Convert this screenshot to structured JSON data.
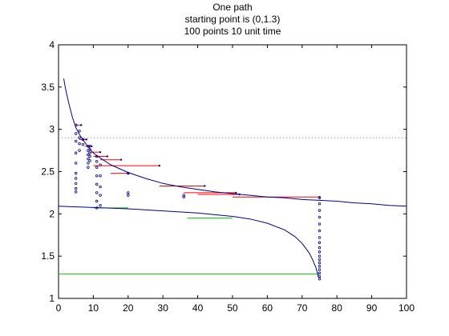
{
  "chart_data": {
    "type": "line",
    "title": [
      "One path",
      "starting point is (0,1.3)",
      "100 points 10 unit time"
    ],
    "xlabel": "",
    "ylabel": "",
    "xlim": [
      0,
      100
    ],
    "ylim": [
      1,
      4
    ],
    "xticks": [
      0,
      10,
      20,
      30,
      40,
      50,
      60,
      70,
      80,
      90,
      100
    ],
    "yticks": [
      1,
      1.5,
      2,
      2.5,
      3,
      3.5,
      4
    ],
    "grid": false,
    "legend": "none",
    "colors": {
      "curve": "#00008b",
      "red": "#ff0000",
      "green": "#00c000",
      "points": "#00008b",
      "dotted": "#808080",
      "axes": "#000000"
    },
    "reference_line": {
      "y": 2.9,
      "style": "dotted"
    },
    "curves": [
      {
        "x": [
          1.5,
          2,
          3,
          4,
          5,
          6,
          8,
          10,
          12,
          15,
          20,
          25,
          30,
          35,
          40,
          45,
          50,
          55,
          60,
          65,
          70,
          75,
          80,
          85,
          90,
          95,
          100
        ],
        "y": [
          3.6,
          3.48,
          3.3,
          3.14,
          3.02,
          2.94,
          2.82,
          2.72,
          2.66,
          2.58,
          2.49,
          2.42,
          2.36,
          2.32,
          2.29,
          2.26,
          2.24,
          2.22,
          2.2,
          2.19,
          2.17,
          2.16,
          2.15,
          2.13,
          2.12,
          2.1,
          2.09
        ]
      },
      {
        "x": [
          0,
          10,
          20,
          30,
          40,
          50,
          55,
          60,
          65,
          68,
          70,
          72,
          73,
          74,
          74.7
        ],
        "y": [
          2.09,
          2.075,
          2.06,
          2.035,
          2.01,
          1.97,
          1.94,
          1.89,
          1.81,
          1.73,
          1.65,
          1.54,
          1.46,
          1.36,
          1.25
        ]
      }
    ],
    "red_segments": [
      {
        "x1": 5,
        "x2": 6.5,
        "y": 3.05
      },
      {
        "x1": 6,
        "x2": 8,
        "y": 2.88
      },
      {
        "x1": 7.5,
        "x2": 9.5,
        "y": 2.8
      },
      {
        "x1": 9,
        "x2": 12,
        "y": 2.73
      },
      {
        "x1": 10,
        "x2": 14,
        "y": 2.68
      },
      {
        "x1": 12,
        "x2": 18,
        "y": 2.64
      },
      {
        "x1": 15,
        "x2": 20,
        "y": 2.48
      },
      {
        "x1": 10,
        "x2": 29,
        "y": 2.57
      },
      {
        "x1": 29,
        "x2": 42,
        "y": 2.33
      },
      {
        "x1": 36,
        "x2": 51,
        "y": 2.25
      },
      {
        "x1": 40,
        "x2": 52,
        "y": 2.23
      },
      {
        "x1": 50,
        "x2": 75,
        "y": 2.2
      }
    ],
    "green_segments": [
      {
        "x1": 10,
        "x2": 20,
        "y": 2.07
      },
      {
        "x1": 37,
        "x2": 50,
        "y": 1.95
      },
      {
        "x1": 0,
        "x2": 75,
        "y": 1.29
      }
    ],
    "point_columns": [
      {
        "x": 5,
        "y": [
          2.26,
          2.3,
          2.36,
          2.42,
          2.48,
          2.6,
          2.72,
          2.86,
          2.95,
          3.05
        ]
      },
      {
        "x": 6,
        "y": [
          2.75,
          2.83,
          2.9,
          2.98
        ]
      },
      {
        "x": 7,
        "y": [
          2.82,
          2.88
        ]
      },
      {
        "x": 8.5,
        "y": [
          2.55,
          2.6,
          2.65,
          2.7,
          2.75,
          2.8
        ]
      },
      {
        "x": 9,
        "y": [
          2.63,
          2.68,
          2.72,
          2.76,
          2.8
        ]
      },
      {
        "x": 11,
        "y": [
          2.07,
          2.15,
          2.25,
          2.35,
          2.45,
          2.55,
          2.62,
          2.68
        ]
      },
      {
        "x": 12,
        "y": [
          2.1,
          2.22,
          2.32,
          2.45,
          2.58
        ]
      },
      {
        "x": 20,
        "y": [
          2.22,
          2.25,
          2.48
        ]
      },
      {
        "x": 36,
        "y": [
          2.2,
          2.22
        ]
      },
      {
        "x": 75,
        "y": [
          1.23,
          1.26,
          1.3,
          1.34,
          1.38,
          1.42,
          1.46,
          1.5,
          1.55,
          1.6,
          1.66,
          1.72,
          1.8,
          1.88,
          1.96,
          2.04,
          2.12,
          2.19
        ]
      }
    ]
  }
}
